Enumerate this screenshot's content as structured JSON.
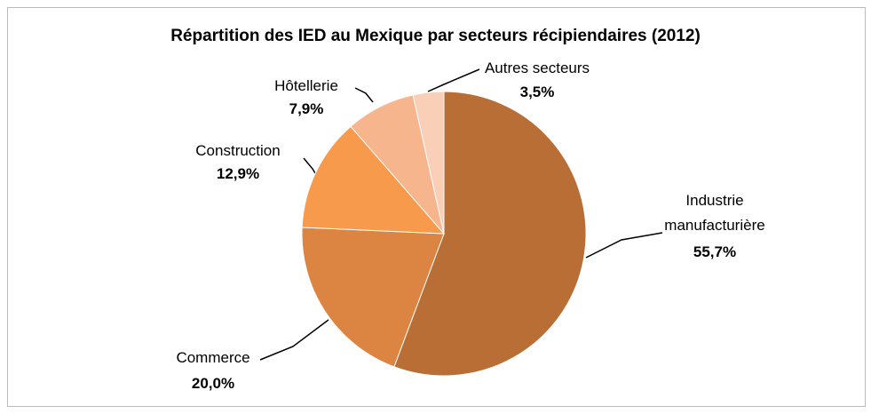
{
  "chart_data": {
    "type": "pie",
    "title": "Répartition des IED au Mexique par secteurs récipiendaires (2012)",
    "categories": [
      "Industrie manufacturière",
      "Commerce",
      "Construction",
      "Hôtellerie",
      "Autres secteurs"
    ],
    "values": [
      55.7,
      20.0,
      12.9,
      7.9,
      3.5
    ],
    "value_labels": [
      "55,7%",
      "20,0%",
      "12,9%",
      "7,9%",
      "3,5%"
    ],
    "colors": [
      "#b86e35",
      "#dc8442",
      "#f79a4b",
      "#f7b58d",
      "#f9cfb8"
    ]
  }
}
